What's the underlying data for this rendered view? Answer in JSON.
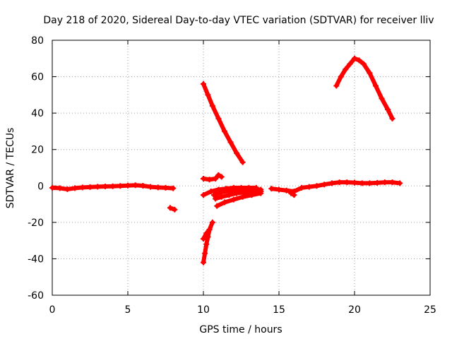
{
  "chart_data": {
    "type": "scatter",
    "title": "Day 218 of 2020, Sidereal Day-to-day VTEC variation (SDTVAR) for receiver lliv",
    "xlabel": "GPS time / hours",
    "ylabel": "SDTVAR / TECUs",
    "xlim": [
      0,
      25
    ],
    "ylim": [
      -60,
      80
    ],
    "x_ticks": [
      0,
      5,
      10,
      15,
      20,
      25
    ],
    "y_ticks": [
      -60,
      -40,
      -20,
      0,
      20,
      40,
      60,
      80
    ],
    "x_tick_labels": [
      "0",
      "5",
      "10",
      "15",
      "20",
      "25"
    ],
    "y_tick_labels": [
      "-60",
      "-40",
      "-20",
      "0",
      "20",
      "40",
      "60",
      "80"
    ],
    "grid": true,
    "marker": "+",
    "color": "#ff0000",
    "series": [
      {
        "points": [
          [
            0,
            -1
          ],
          [
            0.5,
            -1.2
          ],
          [
            1,
            -1.8
          ],
          [
            1.5,
            -1.2
          ],
          [
            2,
            -0.8
          ],
          [
            2.5,
            -0.6
          ],
          [
            3,
            -0.4
          ],
          [
            3.5,
            -0.3
          ],
          [
            4,
            -0.2
          ],
          [
            4.5,
            0
          ],
          [
            5,
            0.2
          ],
          [
            5.5,
            0.4
          ],
          [
            6,
            0.1
          ],
          [
            6.5,
            -0.5
          ],
          [
            7,
            -0.8
          ],
          [
            7.5,
            -1
          ],
          [
            8,
            -1.3
          ]
        ]
      },
      {
        "points": [
          [
            7.8,
            -12
          ],
          [
            8.1,
            -13
          ]
        ]
      },
      {
        "points": [
          [
            10,
            56
          ],
          [
            10.3,
            50
          ],
          [
            10.6,
            44
          ],
          [
            11,
            37
          ],
          [
            11.4,
            30
          ],
          [
            11.8,
            24
          ],
          [
            12.2,
            18
          ],
          [
            12.6,
            13
          ]
        ]
      },
      {
        "points": [
          [
            10,
            4
          ],
          [
            10.4,
            3.5
          ],
          [
            10.8,
            4
          ],
          [
            11,
            6
          ],
          [
            11.2,
            5
          ]
        ]
      },
      {
        "points": [
          [
            10,
            -42
          ],
          [
            10.1,
            -37
          ],
          [
            10.2,
            -32
          ],
          [
            10.3,
            -28
          ],
          [
            10.4,
            -24
          ],
          [
            10.6,
            -20
          ]
        ]
      },
      {
        "points": [
          [
            10,
            -29
          ],
          [
            10.2,
            -26
          ],
          [
            10.4,
            -24
          ]
        ]
      },
      {
        "points": [
          [
            10,
            -5
          ],
          [
            10.5,
            -3
          ],
          [
            11,
            -2
          ],
          [
            11.5,
            -1.5
          ],
          [
            12,
            -1
          ],
          [
            12.5,
            -1
          ],
          [
            13,
            -1
          ],
          [
            13.5,
            -1
          ]
        ]
      },
      {
        "points": [
          [
            10.7,
            -5
          ],
          [
            11.2,
            -3.5
          ],
          [
            11.8,
            -2.5
          ],
          [
            12.5,
            -2
          ],
          [
            13.2,
            -2
          ],
          [
            13.8,
            -2
          ]
        ]
      },
      {
        "points": [
          [
            10.8,
            -7
          ],
          [
            11.2,
            -6
          ],
          [
            11.7,
            -5
          ],
          [
            12.2,
            -4
          ],
          [
            12.7,
            -3.5
          ],
          [
            13.2,
            -3
          ],
          [
            13.8,
            -3
          ]
        ]
      },
      {
        "points": [
          [
            10.9,
            -11
          ],
          [
            11.4,
            -9
          ],
          [
            12,
            -7.5
          ],
          [
            12.6,
            -6
          ],
          [
            13.2,
            -5
          ],
          [
            13.8,
            -4
          ]
        ]
      },
      {
        "points": [
          [
            14.5,
            -1.5
          ],
          [
            15,
            -2
          ],
          [
            15.5,
            -2.5
          ],
          [
            16,
            -3
          ],
          [
            16.5,
            -1
          ],
          [
            17,
            -0.5
          ],
          [
            17.5,
            0
          ],
          [
            18,
            0.8
          ],
          [
            18.5,
            1.5
          ],
          [
            19,
            2
          ],
          [
            19.5,
            2
          ],
          [
            20,
            1.8
          ],
          [
            20.5,
            1.5
          ],
          [
            21,
            1.5
          ],
          [
            21.5,
            1.7
          ],
          [
            22,
            2
          ],
          [
            22.5,
            2
          ],
          [
            23,
            1.5
          ]
        ]
      },
      {
        "points": [
          [
            15.8,
            -4
          ],
          [
            16,
            -5
          ]
        ]
      },
      {
        "points": [
          [
            18.8,
            55
          ],
          [
            19.1,
            60
          ],
          [
            19.4,
            64
          ],
          [
            19.7,
            67
          ],
          [
            20,
            70
          ],
          [
            20.3,
            69
          ],
          [
            20.6,
            67
          ],
          [
            21,
            62
          ],
          [
            21.4,
            55
          ],
          [
            21.8,
            48
          ],
          [
            22.2,
            42
          ],
          [
            22.5,
            37
          ]
        ]
      }
    ]
  }
}
